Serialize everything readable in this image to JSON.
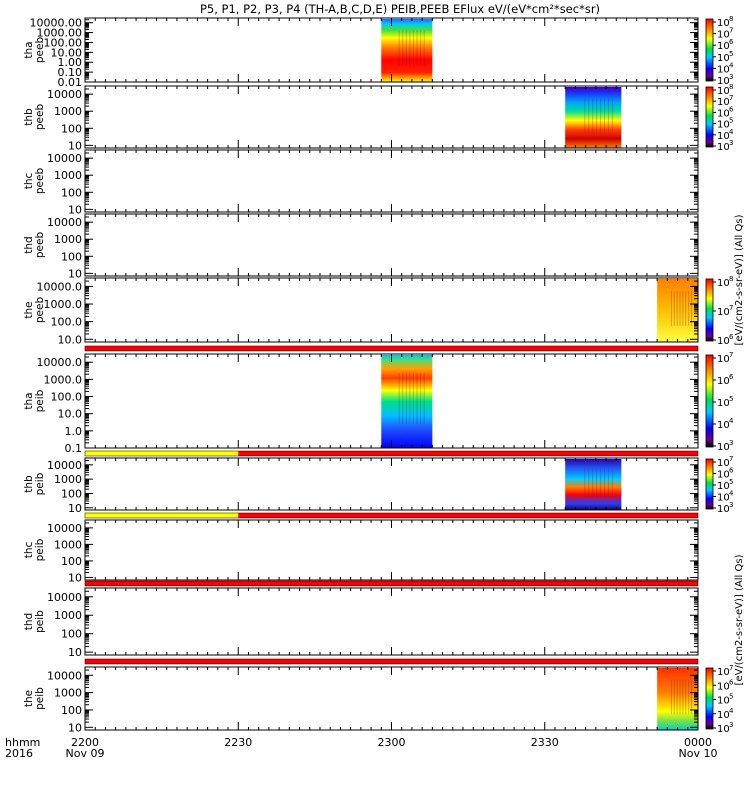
{
  "title": "P5, P1, P2, P3, P4 (TH-A,B,C,D,E) PEIB,PEEB EFlux eV/(eV*cm²*sec*sr)",
  "x_axis": {
    "row1_label": "hhmm",
    "row2_label": "2016",
    "ticks": [
      {
        "hhmm": "2200",
        "date": "Nov 09",
        "t": 0
      },
      {
        "hhmm": "2230",
        "date": "",
        "t": 30
      },
      {
        "hhmm": "2300",
        "date": "",
        "t": 60
      },
      {
        "hhmm": "2330",
        "date": "",
        "t": 90
      },
      {
        "hhmm": "0000",
        "date": "Nov 10",
        "t": 120
      }
    ],
    "range_minutes": [
      0,
      120
    ]
  },
  "colorbar_unit_eflux": "[eV/(cm2-s-sr-eV)] (All Qs)",
  "colorbar_unit_particle": "[eV/(cm2-s-sr-eV)] (All Qs)",
  "chart_data": [
    {
      "type": "heatmap",
      "panel": "tha peeb",
      "ylabel": [
        "tha",
        "peeb"
      ],
      "yscale": "log",
      "ylim": [
        0.01,
        30000
      ],
      "yticks": [
        {
          "v": 10000,
          "label": "10000.00"
        },
        {
          "v": 1000,
          "label": "1000.00"
        },
        {
          "v": 100,
          "label": "100.00"
        },
        {
          "v": 10,
          "label": "10.00"
        },
        {
          "v": 1,
          "label": "1.00"
        },
        {
          "v": 0.1,
          "label": "0.10"
        },
        {
          "v": 0.01,
          "label": "0.01"
        }
      ],
      "data_window": [
        [
          58,
          68
        ]
      ],
      "colorbar": {
        "exp_min": 3,
        "exp_max": 8
      }
    },
    {
      "type": "heatmap",
      "panel": "thb peeb",
      "ylabel": [
        "thb",
        "peeb"
      ],
      "yscale": "log",
      "ylim": [
        7,
        30000
      ],
      "yticks": [
        {
          "v": 10000,
          "label": "10000"
        },
        {
          "v": 1000,
          "label": "1000"
        },
        {
          "v": 100,
          "label": "100"
        },
        {
          "v": 10,
          "label": "10"
        }
      ],
      "data_window": [
        [
          94,
          105
        ]
      ],
      "colorbar": {
        "exp_min": 3,
        "exp_max": 8
      }
    },
    {
      "type": "heatmap",
      "panel": "thc peeb",
      "ylabel": [
        "thc",
        "peeb"
      ],
      "yscale": "log",
      "ylim": [
        7,
        30000
      ],
      "yticks": [
        {
          "v": 10000,
          "label": "10000"
        },
        {
          "v": 1000,
          "label": "1000"
        },
        {
          "v": 100,
          "label": "100"
        },
        {
          "v": 10,
          "label": "10"
        }
      ],
      "data_window": [],
      "colorbar": null
    },
    {
      "type": "heatmap",
      "panel": "thd peeb",
      "ylabel": [
        "thd",
        "peeb"
      ],
      "yscale": "log",
      "ylim": [
        7,
        30000
      ],
      "yticks": [
        {
          "v": 10000,
          "label": "10000"
        },
        {
          "v": 1000,
          "label": "1000"
        },
        {
          "v": 100,
          "label": "100"
        },
        {
          "v": 10,
          "label": "10"
        }
      ],
      "data_window": [],
      "colorbar": null
    },
    {
      "type": "heatmap",
      "panel": "the peeb",
      "ylabel": [
        "the",
        "peeb"
      ],
      "yscale": "log",
      "ylim": [
        7,
        30000
      ],
      "yticks": [
        {
          "v": 10000,
          "label": "10000.0"
        },
        {
          "v": 1000,
          "label": "1000.0"
        },
        {
          "v": 100,
          "label": "100.0"
        },
        {
          "v": 10,
          "label": "10.0"
        }
      ],
      "data_window": [
        [
          112,
          120
        ]
      ],
      "colorbar": {
        "exp_min": 6,
        "exp_max": 8
      }
    },
    {
      "type": "heatmap",
      "panel": "tha peib",
      "ylabel": [
        "tha",
        "peib"
      ],
      "yscale": "log",
      "ylim": [
        0.1,
        30000
      ],
      "yticks": [
        {
          "v": 10000,
          "label": "10000.0"
        },
        {
          "v": 1000,
          "label": "1000.0"
        },
        {
          "v": 100,
          "label": "100.0"
        },
        {
          "v": 10,
          "label": "10.0"
        },
        {
          "v": 1,
          "label": "1.0"
        },
        {
          "v": 0.1,
          "label": "0.1"
        }
      ],
      "data_window": [
        [
          58,
          68
        ]
      ],
      "colorbar": {
        "exp_min": 3,
        "exp_max": 7
      }
    },
    {
      "type": "heatmap",
      "panel": "thb peib",
      "ylabel": [
        "thb",
        "peib"
      ],
      "yscale": "log",
      "ylim": [
        7,
        30000
      ],
      "yticks": [
        {
          "v": 10000,
          "label": "10000"
        },
        {
          "v": 1000,
          "label": "1000"
        },
        {
          "v": 100,
          "label": "100"
        },
        {
          "v": 10,
          "label": "10"
        }
      ],
      "data_window": [
        [
          94,
          105
        ]
      ],
      "colorbar": {
        "exp_min": 3,
        "exp_max": 7
      }
    },
    {
      "type": "heatmap",
      "panel": "thc peib",
      "ylabel": [
        "thc",
        "peib"
      ],
      "yscale": "log",
      "ylim": [
        7,
        30000
      ],
      "yticks": [
        {
          "v": 10000,
          "label": "10000"
        },
        {
          "v": 1000,
          "label": "1000"
        },
        {
          "v": 100,
          "label": "100"
        },
        {
          "v": 10,
          "label": "10"
        }
      ],
      "data_window": [],
      "colorbar": null
    },
    {
      "type": "heatmap",
      "panel": "thd peib",
      "ylabel": [
        "thd",
        "peib"
      ],
      "yscale": "log",
      "ylim": [
        7,
        30000
      ],
      "yticks": [
        {
          "v": 10000,
          "label": "10000"
        },
        {
          "v": 1000,
          "label": "1000"
        },
        {
          "v": 100,
          "label": "100"
        },
        {
          "v": 10,
          "label": "10"
        }
      ],
      "data_window": [],
      "colorbar": null
    },
    {
      "type": "heatmap",
      "panel": "the peib",
      "ylabel": [
        "the",
        "peib"
      ],
      "yscale": "log",
      "ylim": [
        7,
        30000
      ],
      "yticks": [
        {
          "v": 10000,
          "label": "10000"
        },
        {
          "v": 1000,
          "label": "1000"
        },
        {
          "v": 100,
          "label": "100"
        },
        {
          "v": 10,
          "label": "10"
        }
      ],
      "data_window": [
        [
          112,
          120
        ]
      ],
      "colorbar": {
        "exp_min": 3,
        "exp_max": 7
      }
    }
  ],
  "status_bars": [
    {
      "after_panel": 4,
      "segments": [
        {
          "from": 0,
          "to": 120,
          "color": "#ff0000"
        }
      ]
    },
    {
      "after_panel": 5,
      "segments": [
        {
          "from": 0,
          "to": 30,
          "color": "#ffff00"
        },
        {
          "from": 30,
          "to": 120,
          "color": "#ff0000"
        }
      ]
    },
    {
      "after_panel": 6,
      "segments": [
        {
          "from": 0,
          "to": 30,
          "color": "#ffff00"
        },
        {
          "from": 30,
          "to": 120,
          "color": "#ff0000"
        }
      ]
    },
    {
      "after_panel": 7,
      "segments": [
        {
          "from": 0,
          "to": 120,
          "color": "#ff0000"
        }
      ]
    },
    {
      "after_panel": 8,
      "segments": [
        {
          "from": 0,
          "to": 120,
          "color": "#ff0000"
        }
      ]
    }
  ],
  "colors": {
    "frame": "#000000",
    "background": "#ffffff"
  }
}
